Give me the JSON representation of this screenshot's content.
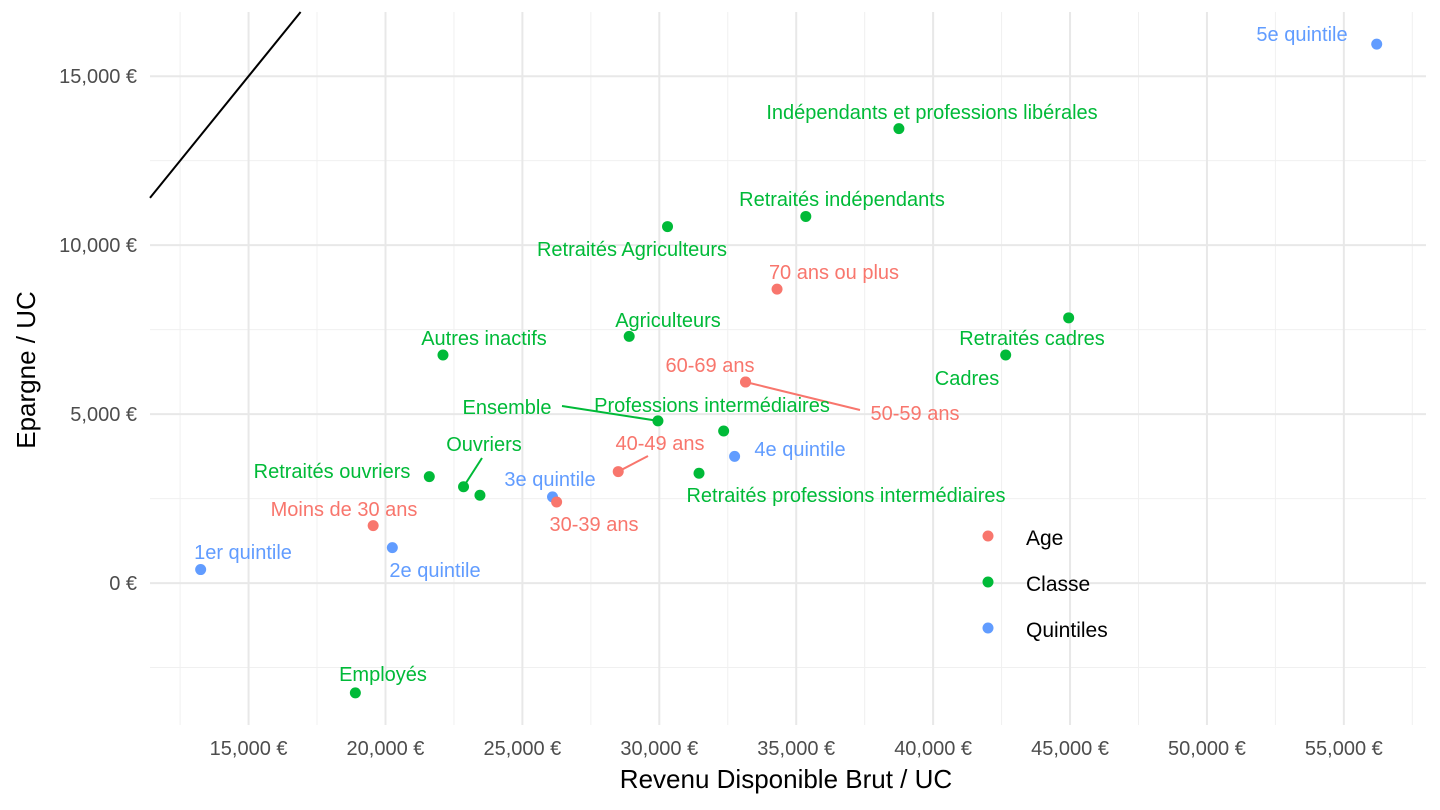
{
  "chart_data": {
    "type": "scatter",
    "xlabel": "Revenu Disponible Brut / UC",
    "ylabel": "Epargne / UC",
    "xlim": [
      11400,
      58000
    ],
    "ylim": [
      -4200,
      16900
    ],
    "x_ticks": [
      15000,
      20000,
      25000,
      30000,
      35000,
      40000,
      45000,
      50000,
      55000
    ],
    "x_tick_labels": [
      "15,000 €",
      "20,000 €",
      "25,000 €",
      "30,000 €",
      "35,000 €",
      "40,000 €",
      "45,000 €",
      "50,000 €",
      "55,000 €"
    ],
    "y_ticks": [
      0,
      5000,
      10000,
      15000
    ],
    "y_tick_labels": [
      "0 €",
      "5,000 €",
      "10,000 €",
      "15,000 €"
    ],
    "grid": true,
    "reference_line": {
      "type": "identity",
      "slope": 1,
      "intercept": 0
    },
    "colors": {
      "Age": "#F8766D",
      "Classe": "#00BA38",
      "Quintiles": "#619CFF"
    },
    "legend": {
      "placement": "bottom-right",
      "entries": [
        {
          "name": "Age",
          "group": "Age"
        },
        {
          "name": "Classe",
          "group": "Classe"
        },
        {
          "name": "Quintiles",
          "group": "Quintiles"
        }
      ]
    },
    "points": [
      {
        "label": "5e quintile",
        "group": "Quintiles",
        "x": 56200,
        "y": 15950
      },
      {
        "label": "Indépendants et professions libérales",
        "group": "Classe",
        "x": 38750,
        "y": 13450
      },
      {
        "label": "Retraités indépendants",
        "group": "Classe",
        "x": 35350,
        "y": 10850
      },
      {
        "label": "Retraités Agriculteurs",
        "group": "Classe",
        "x": 30300,
        "y": 10550
      },
      {
        "label": "70 ans ou plus",
        "group": "Age",
        "x": 34300,
        "y": 8700
      },
      {
        "label": "Retraités cadres",
        "group": "Classe",
        "x": 44950,
        "y": 7850
      },
      {
        "label": "Agriculteurs",
        "group": "Classe",
        "x": 28900,
        "y": 7300
      },
      {
        "label": "Autres inactifs",
        "group": "Classe",
        "x": 22100,
        "y": 6750
      },
      {
        "label": "Cadres",
        "group": "Classe",
        "x": 42650,
        "y": 6750
      },
      {
        "label": "60-69 ans",
        "group": "Age",
        "x": 33150,
        "y": 5950
      },
      {
        "label": "50-59 ans",
        "group": "Age",
        "x": 33150,
        "y": 5950
      },
      {
        "label": "Professions intermédiaires",
        "group": "Classe",
        "x": 32350,
        "y": 4500
      },
      {
        "label": "Ensemble",
        "group": "Classe",
        "x": 29950,
        "y": 4800
      },
      {
        "label": "4e quintile",
        "group": "Quintiles",
        "x": 32750,
        "y": 3750
      },
      {
        "label": "40-49 ans",
        "group": "Age",
        "x": 28500,
        "y": 3300
      },
      {
        "label": "Retraités professions intermédiaires",
        "group": "Classe",
        "x": 31450,
        "y": 3250
      },
      {
        "label": "Retraités ouvriers",
        "group": "Classe",
        "x": 21600,
        "y": 3150
      },
      {
        "label": "Ouvriers",
        "group": "Classe",
        "x": 22850,
        "y": 2850
      },
      {
        "label": "",
        "group": "Classe",
        "x": 23450,
        "y": 2600
      },
      {
        "label": "3e quintile",
        "group": "Quintiles",
        "x": 26100,
        "y": 2550
      },
      {
        "label": "30-39 ans",
        "group": "Age",
        "x": 26250,
        "y": 2400
      },
      {
        "label": "Moins de 30 ans",
        "group": "Age",
        "x": 19550,
        "y": 1700
      },
      {
        "label": "2e quintile",
        "group": "Quintiles",
        "x": 20250,
        "y": 1050
      },
      {
        "label": "1er quintile",
        "group": "Quintiles",
        "x": 13250,
        "y": 400
      },
      {
        "label": "Employés",
        "group": "Classe",
        "x": 18900,
        "y": -3250
      }
    ]
  }
}
